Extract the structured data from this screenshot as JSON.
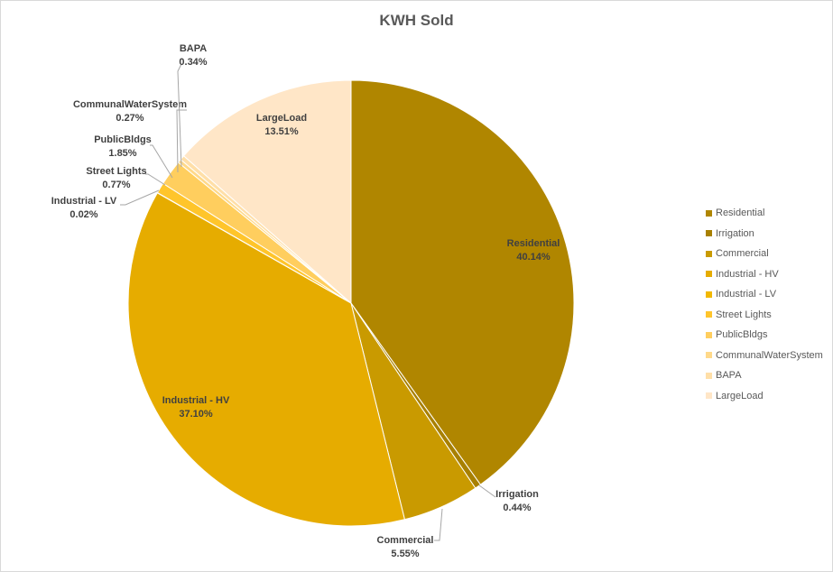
{
  "chart_data": {
    "type": "pie",
    "title": "KWH Sold",
    "legend_position": "right",
    "slices": [
      {
        "name": "Residential",
        "value": 40.14,
        "label": "40.14%",
        "color": "#B08600"
      },
      {
        "name": "Irrigation",
        "value": 0.44,
        "label": "0.44%",
        "color": "#A88000"
      },
      {
        "name": "Commercial",
        "value": 5.55,
        "label": "5.55%",
        "color": "#C99A00"
      },
      {
        "name": "Industrial - HV",
        "value": 37.1,
        "label": "37.10%",
        "color": "#E6AC00"
      },
      {
        "name": "Industrial - LV",
        "value": 0.02,
        "label": "0.02%",
        "color": "#F2B800"
      },
      {
        "name": "Street Lights",
        "value": 0.77,
        "label": "0.77%",
        "color": "#FFC52B"
      },
      {
        "name": "PublicBldgs",
        "value": 1.85,
        "label": "1.85%",
        "color": "#FFCE5E"
      },
      {
        "name": "CommunalWaterSystem",
        "value": 0.27,
        "label": "0.27%",
        "color": "#FFD98A"
      },
      {
        "name": "BAPA",
        "value": 0.34,
        "label": "0.34%",
        "color": "#FFDFA8"
      },
      {
        "name": "LargeLoad",
        "value": 13.51,
        "label": "13.51%",
        "color": "#FFE6C7"
      }
    ]
  }
}
